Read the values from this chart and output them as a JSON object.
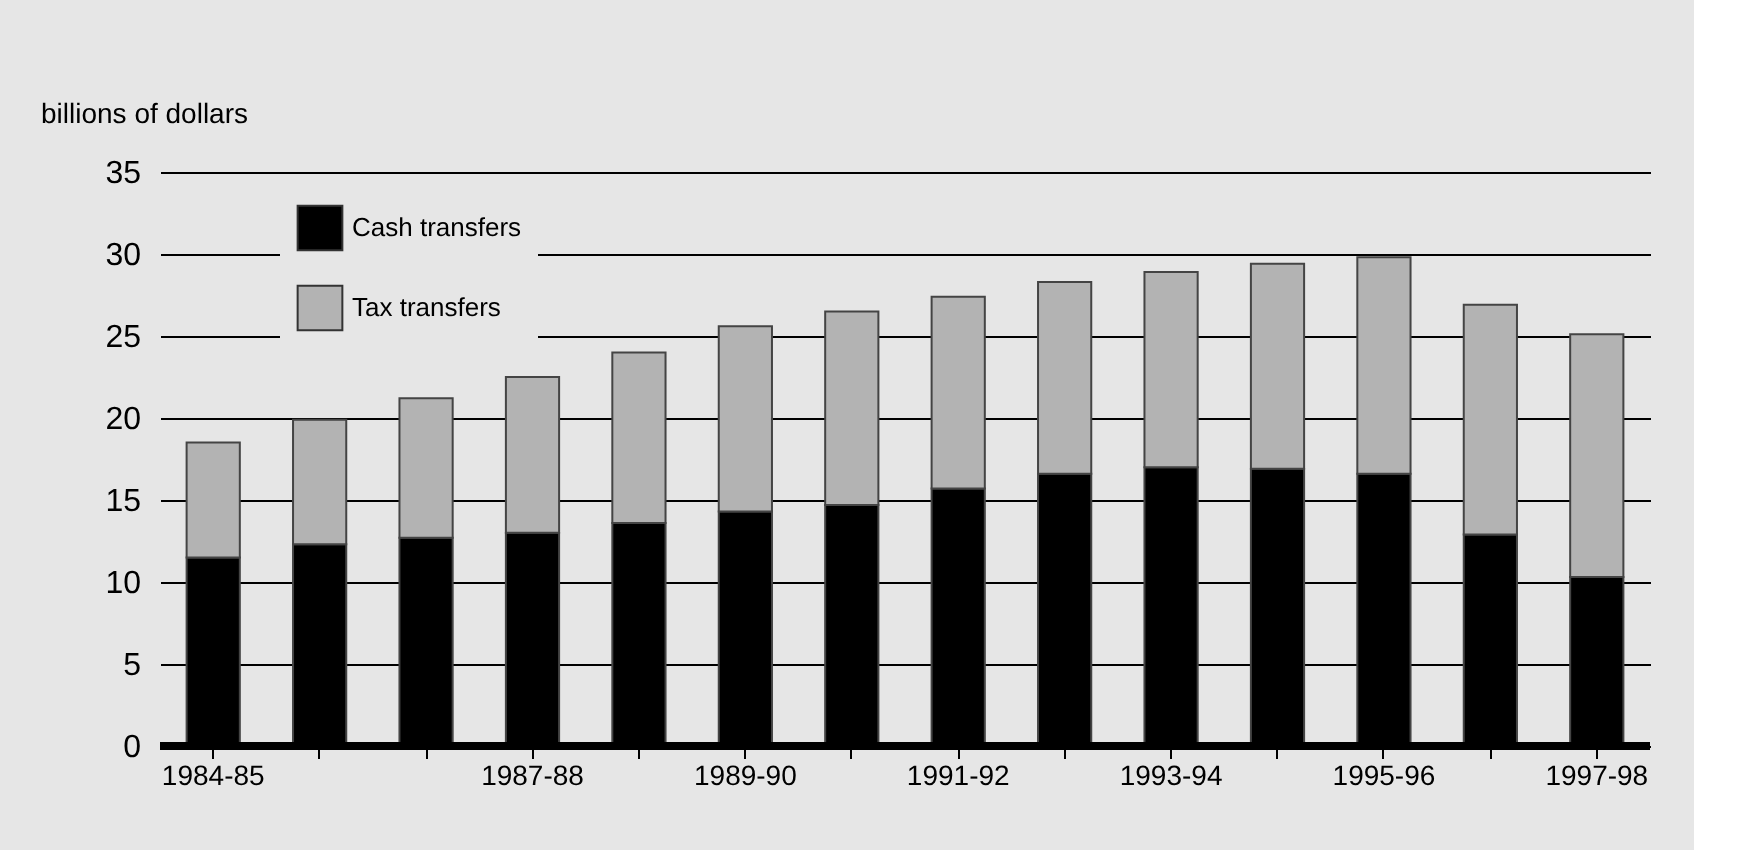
{
  "chart_data": {
    "type": "bar",
    "stacked": true,
    "ylabel": "billions of dollars",
    "categories": [
      "1984-85",
      null,
      null,
      "1987-88",
      null,
      "1989-90",
      null,
      "1991-92",
      null,
      "1993-94",
      null,
      "1995-96",
      null,
      "1997-98"
    ],
    "series": [
      {
        "name": "Cash transfers",
        "color": "#000000",
        "values": [
          11.5,
          12.3,
          12.7,
          13.0,
          13.6,
          14.3,
          14.7,
          15.7,
          16.6,
          17.0,
          16.9,
          16.6,
          12.9,
          10.3
        ]
      },
      {
        "name": "Tax transfers",
        "color": "#b3b3b3",
        "values": [
          7.0,
          7.6,
          8.5,
          9.5,
          10.4,
          11.3,
          11.8,
          11.7,
          11.7,
          11.9,
          12.5,
          13.2,
          14.0,
          14.8
        ]
      }
    ],
    "ylim": [
      0,
      35
    ],
    "yticks": [
      0,
      5,
      10,
      15,
      20,
      25,
      30,
      35
    ],
    "grid": "y",
    "legend": "top left"
  }
}
